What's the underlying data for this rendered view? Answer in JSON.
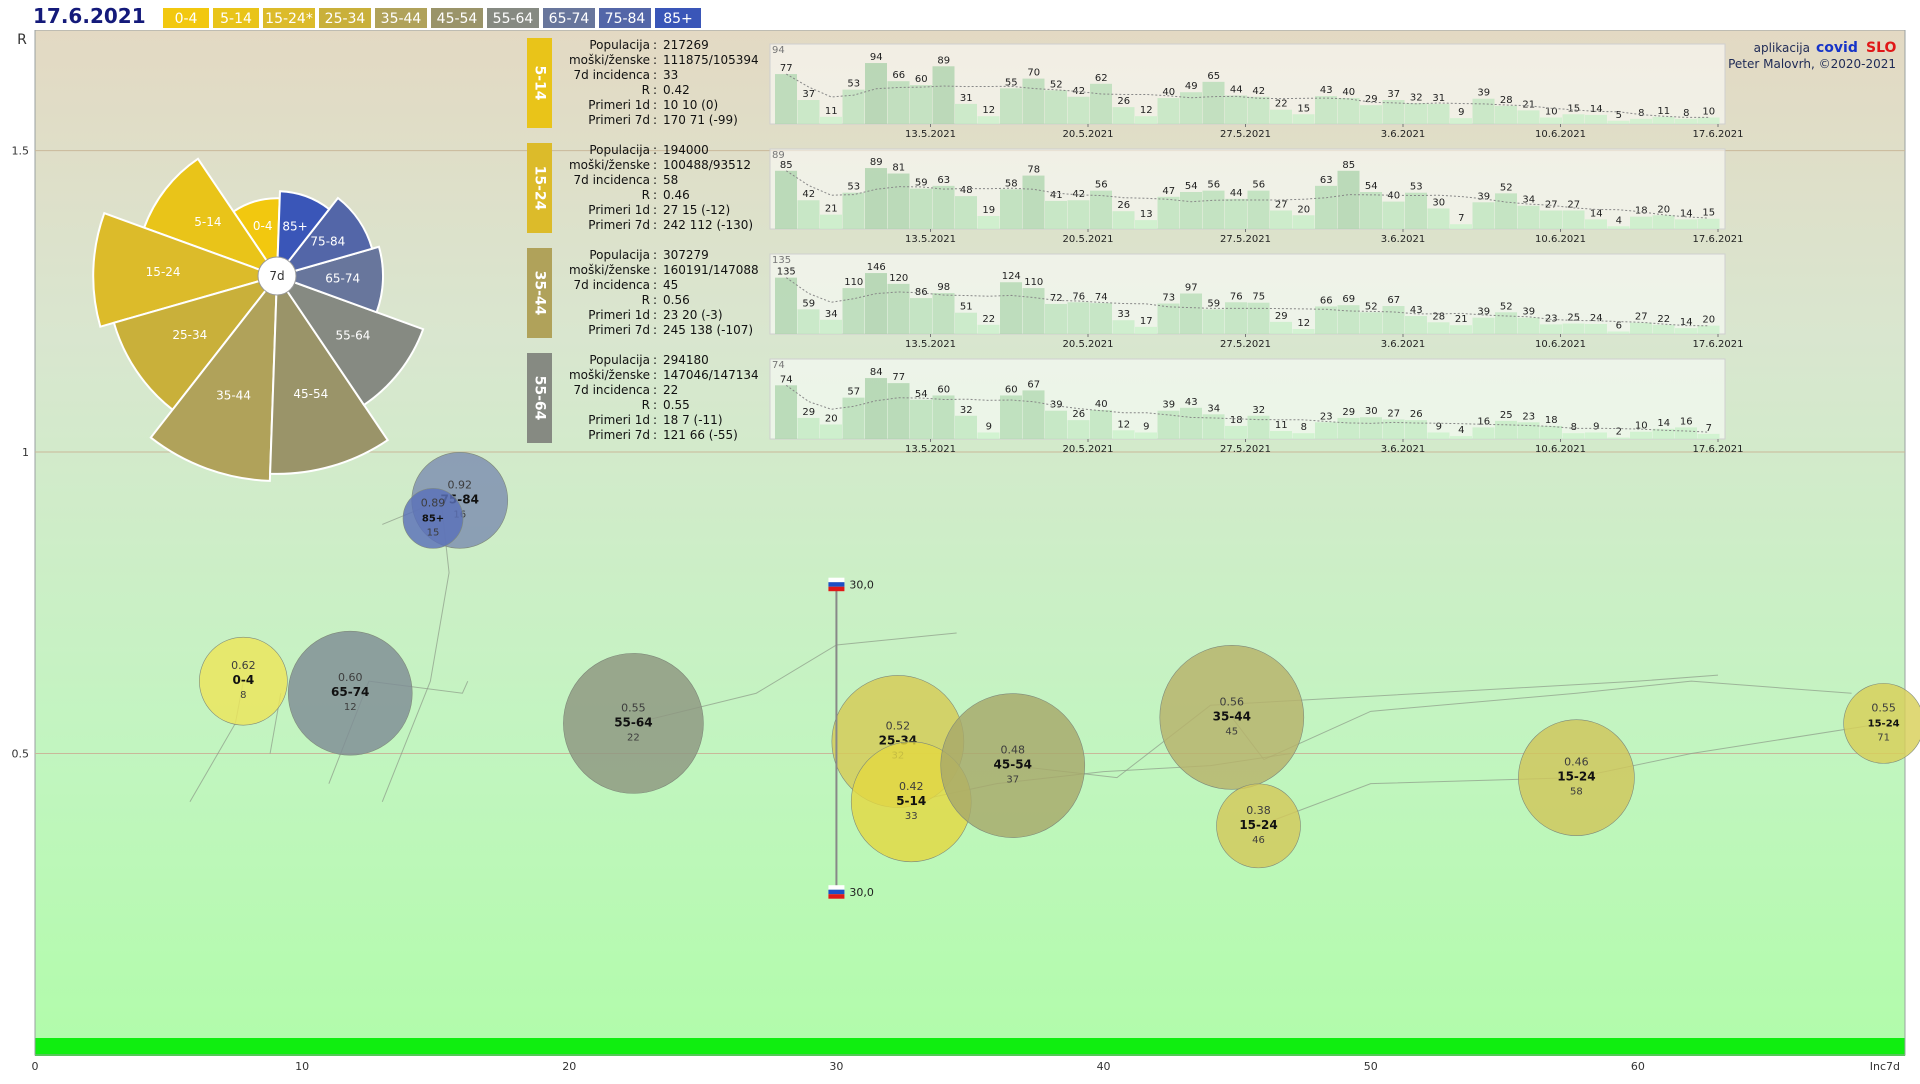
{
  "header": {
    "date": "17.6.2021",
    "legend": [
      {
        "label": "0-4",
        "color": "#f2c80f"
      },
      {
        "label": "5-14",
        "color": "#e9c419"
      },
      {
        "label": "15-24*",
        "color": "#dcbb2a"
      },
      {
        "label": "25-34",
        "color": "#c9b03a"
      },
      {
        "label": "35-44",
        "color": "#b0a25a"
      },
      {
        "label": "45-54",
        "color": "#9a9469"
      },
      {
        "label": "55-64",
        "color": "#868a82"
      },
      {
        "label": "65-74",
        "color": "#68769c"
      },
      {
        "label": "75-84",
        "color": "#5366a8"
      },
      {
        "label": "85+",
        "color": "#3a56b8"
      }
    ]
  },
  "credits": {
    "app_label": "aplikacija",
    "brand_a": "covid",
    "brand_b": "SLO",
    "author": "Peter Malovrh, ©2020-2021"
  },
  "chart_data": {
    "type": "scatter",
    "xlabel": "Inc7d",
    "ylabel": "R",
    "xlim": [
      0,
      70
    ],
    "ylim": [
      0,
      1.7
    ],
    "x_ticks": [
      "0",
      "10",
      "20",
      "30",
      "40",
      "50",
      "60"
    ],
    "y_ticks": [
      "0.5",
      "1",
      "1.5"
    ],
    "bubbles": [
      {
        "group": "0-4",
        "r": "0.62",
        "n": "8",
        "x": 7.8,
        "y": 0.62,
        "size": 44,
        "color": "#ede55a"
      },
      {
        "group": "65-74",
        "r": "0.60",
        "n": "12",
        "x": 11.8,
        "y": 0.6,
        "size": 62,
        "color": "#7f8c95"
      },
      {
        "group": "55-64",
        "r": "0.55",
        "n": "22",
        "x": 22.4,
        "y": 0.55,
        "size": 70,
        "color": "#8e9680"
      },
      {
        "group": "25-34",
        "r": "0.52",
        "n": "32",
        "x": 32.3,
        "y": 0.52,
        "size": 66,
        "color": "#d6cb55"
      },
      {
        "group": "5-14",
        "r": "0.42",
        "n": "33",
        "x": 32.8,
        "y": 0.42,
        "size": 60,
        "color": "#e3d842"
      },
      {
        "group": "45-54",
        "r": "0.48",
        "n": "37",
        "x": 36.6,
        "y": 0.48,
        "size": 72,
        "color": "#a7a86a"
      },
      {
        "group": "35-44",
        "r": "0.56",
        "n": "45",
        "x": 44.8,
        "y": 0.56,
        "size": 72,
        "color": "#b7b26a"
      },
      {
        "group": "15-24",
        "r": "0.38",
        "n": "46",
        "x": 45.8,
        "y": 0.38,
        "size": 42,
        "color": "#d3c85a"
      },
      {
        "group": "15-24",
        "r": "0.46",
        "n": "58",
        "x": 57.7,
        "y": 0.46,
        "size": 58,
        "color": "#cfc65a"
      },
      {
        "group": "15-24",
        "r": "0.55",
        "n": "71",
        "x": 69.2,
        "y": 0.55,
        "size": 40,
        "color": "#d8cf58"
      },
      {
        "group": "75-84",
        "r": "0.92",
        "n": "16",
        "x": 15.9,
        "y": 0.92,
        "size": 48,
        "color": "#7d8db0"
      },
      {
        "group": "85+",
        "r": "0.89",
        "n": "15",
        "x": 14.9,
        "y": 0.89,
        "size": 30,
        "color": "#5a70b8"
      }
    ],
    "reference_marks": [
      {
        "label": "30,0",
        "x": 30,
        "y": 0.78
      },
      {
        "label": "30,0",
        "x": 30,
        "y": 0.27
      }
    ],
    "rose": {
      "center_label": "7d",
      "sectors": [
        {
          "label": "0-4",
          "value": 22,
          "color": "#f2c80f"
        },
        {
          "label": "5-14",
          "value": 40,
          "color": "#e9c419"
        },
        {
          "label": "15-24",
          "value": 52,
          "color": "#dcbb2a"
        },
        {
          "label": "25-34",
          "value": 48,
          "color": "#c9b03a"
        },
        {
          "label": "35-44",
          "value": 58,
          "color": "#b0a25a"
        },
        {
          "label": "45-54",
          "value": 56,
          "color": "#9a9469"
        },
        {
          "label": "55-64",
          "value": 44,
          "color": "#868a82"
        },
        {
          "label": "65-74",
          "value": 30,
          "color": "#68769c"
        },
        {
          "label": "75-84",
          "value": 28,
          "color": "#5366a8"
        },
        {
          "label": "85+",
          "value": 24,
          "color": "#3a56b8"
        }
      ]
    },
    "panels": [
      {
        "group": "5-14",
        "color": "#e9c419",
        "stats": [
          [
            "Populacija",
            "217269"
          ],
          [
            "moški/ženske",
            "111875/105394"
          ],
          [
            "7d incidenca",
            "33"
          ],
          [
            "R",
            "0.42"
          ],
          [
            "Primeri 1d",
            "10 10 (0)"
          ],
          [
            "Primeri 7d",
            "170 71 (-99)"
          ]
        ],
        "bars": [
          77,
          37,
          11,
          53,
          94,
          66,
          60,
          89,
          31,
          12,
          55,
          70,
          52,
          42,
          62,
          26,
          12,
          40,
          49,
          65,
          44,
          42,
          22,
          15,
          43,
          40,
          29,
          37,
          32,
          31,
          9,
          39,
          28,
          21,
          10,
          15,
          14,
          5,
          8,
          11,
          8,
          10
        ],
        "first_label": "94",
        "dates": [
          "13.5.2021",
          "20.5.2021",
          "27.5.2021",
          "3.6.2021",
          "10.6.2021",
          "17.6.2021"
        ]
      },
      {
        "group": "15-24",
        "color": "#dcbb2a",
        "stats": [
          [
            "Populacija",
            "194000"
          ],
          [
            "moški/ženske",
            "100488/93512"
          ],
          [
            "7d incidenca",
            "58"
          ],
          [
            "R",
            "0.46"
          ],
          [
            "Primeri 1d",
            "27 15 (-12)"
          ],
          [
            "Primeri 7d",
            "242 112 (-130)"
          ]
        ],
        "bars": [
          85,
          42,
          21,
          53,
          89,
          81,
          59,
          63,
          48,
          19,
          58,
          78,
          41,
          42,
          56,
          26,
          13,
          47,
          54,
          56,
          44,
          56,
          27,
          20,
          63,
          85,
          54,
          40,
          53,
          30,
          7,
          39,
          52,
          34,
          27,
          27,
          14,
          4,
          18,
          20,
          14,
          15
        ],
        "first_label": "89",
        "dates": [
          "13.5.2021",
          "20.5.2021",
          "27.5.2021",
          "3.6.2021",
          "10.6.2021",
          "17.6.2021"
        ]
      },
      {
        "group": "35-44",
        "color": "#b0a25a",
        "stats": [
          [
            "Populacija",
            "307279"
          ],
          [
            "moški/ženske",
            "160191/147088"
          ],
          [
            "7d incidenca",
            "45"
          ],
          [
            "R",
            "0.56"
          ],
          [
            "Primeri 1d",
            "23 20 (-3)"
          ],
          [
            "Primeri 7d",
            "245 138 (-107)"
          ]
        ],
        "bars": [
          135,
          59,
          34,
          110,
          146,
          120,
          86,
          98,
          51,
          22,
          124,
          110,
          72,
          76,
          74,
          33,
          17,
          73,
          97,
          59,
          76,
          75,
          29,
          12,
          66,
          69,
          52,
          67,
          43,
          28,
          21,
          39,
          52,
          39,
          23,
          25,
          24,
          6,
          27,
          22,
          14,
          20
        ],
        "first_label": "135",
        "dates": [
          "13.5.2021",
          "20.5.2021",
          "27.5.2021",
          "3.6.2021",
          "10.6.2021",
          "17.6.2021"
        ]
      },
      {
        "group": "55-64",
        "color": "#868a82",
        "stats": [
          [
            "Populacija",
            "294180"
          ],
          [
            "moški/ženske",
            "147046/147134"
          ],
          [
            "7d incidenca",
            "22"
          ],
          [
            "R",
            "0.55"
          ],
          [
            "Primeri 1d",
            "18 7 (-11)"
          ],
          [
            "Primeri 7d",
            "121 66 (-55)"
          ]
        ],
        "bars": [
          74,
          29,
          20,
          57,
          84,
          77,
          54,
          60,
          32,
          9,
          60,
          67,
          39,
          26,
          40,
          12,
          9,
          39,
          43,
          34,
          18,
          32,
          11,
          8,
          23,
          29,
          30,
          27,
          26,
          9,
          4,
          16,
          25,
          23,
          18,
          8,
          9,
          2,
          10,
          14,
          16,
          7
        ],
        "first_label": "74",
        "dates": [
          "13.5.2021",
          "20.5.2021",
          "27.5.2021",
          "3.6.2021",
          "10.6.2021",
          "17.6.2021"
        ]
      }
    ]
  }
}
